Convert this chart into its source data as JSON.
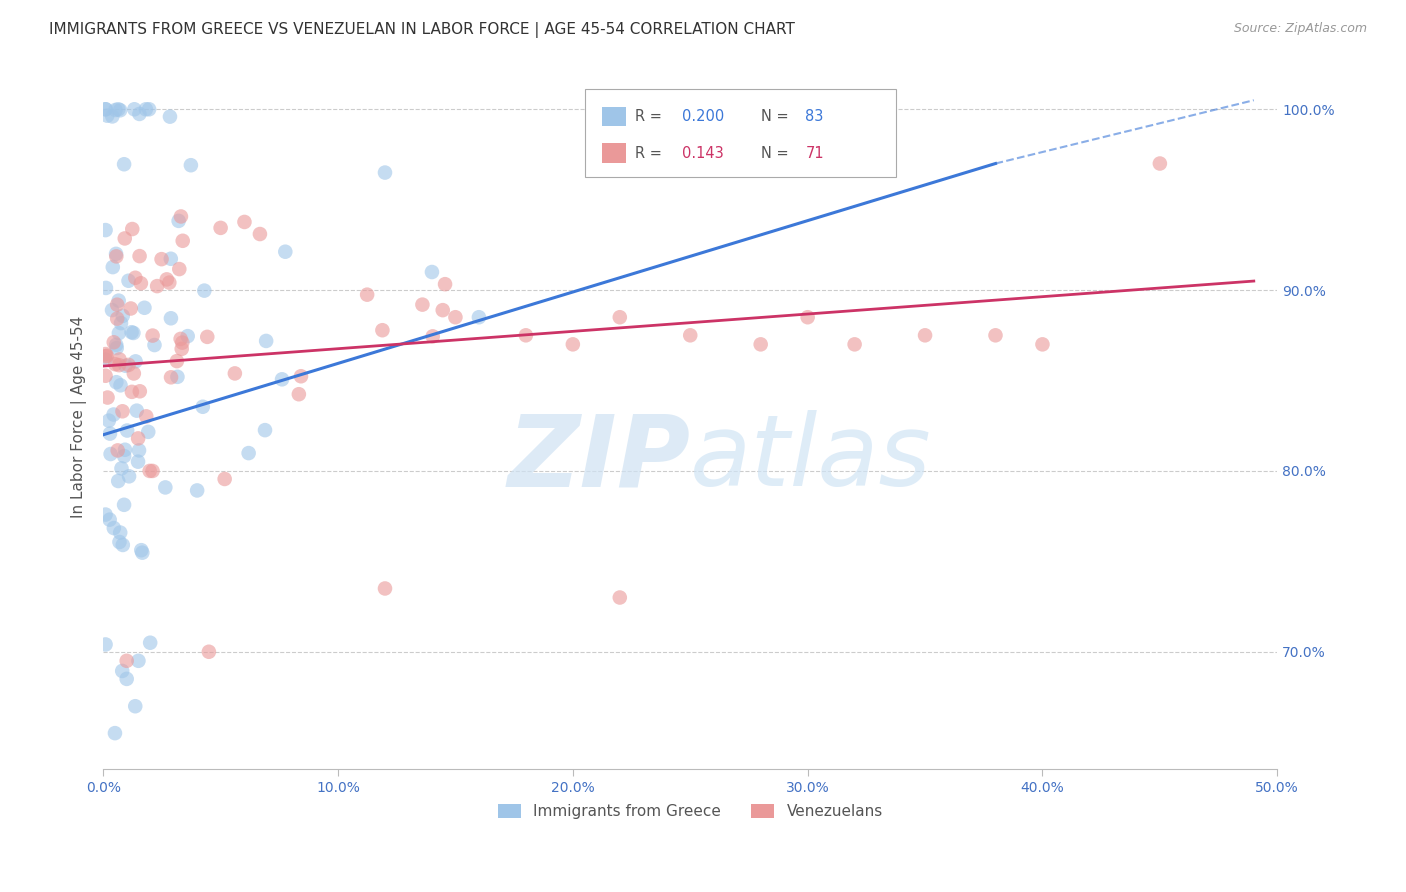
{
  "title": "IMMIGRANTS FROM GREECE VS VENEZUELAN IN LABOR FORCE | AGE 45-54 CORRELATION CHART",
  "source_text": "Source: ZipAtlas.com",
  "ylabel": "In Labor Force | Age 45-54",
  "xlim": [
    0.0,
    0.5
  ],
  "ylim": [
    0.635,
    1.025
  ],
  "yticks": [
    0.7,
    0.8,
    0.9,
    1.0
  ],
  "ytick_labels": [
    "70.0%",
    "80.0%",
    "90.0%",
    "100.0%"
  ],
  "xticks": [
    0.0,
    0.1,
    0.2,
    0.3,
    0.4,
    0.5
  ],
  "xtick_labels": [
    "0.0%",
    "10.0%",
    "20.0%",
    "30.0%",
    "40.0%",
    "50.0%"
  ],
  "greece_R": 0.2,
  "greece_N": 83,
  "venezuela_R": 0.143,
  "venezuela_N": 71,
  "greece_color": "#9fc5e8",
  "venezuela_color": "#ea9999",
  "greece_line_color": "#3c78d8",
  "venezuela_line_color": "#cc3366",
  "watermark_color": "#cfe2f3",
  "background_color": "#ffffff",
  "grid_color": "#cccccc",
  "tick_label_color": "#4472c4",
  "greece_line_x": [
    0.0,
    0.38
  ],
  "greece_line_y": [
    0.82,
    0.97
  ],
  "venezuela_line_x": [
    0.0,
    0.49
  ],
  "venezuela_line_y": [
    0.858,
    0.905
  ]
}
